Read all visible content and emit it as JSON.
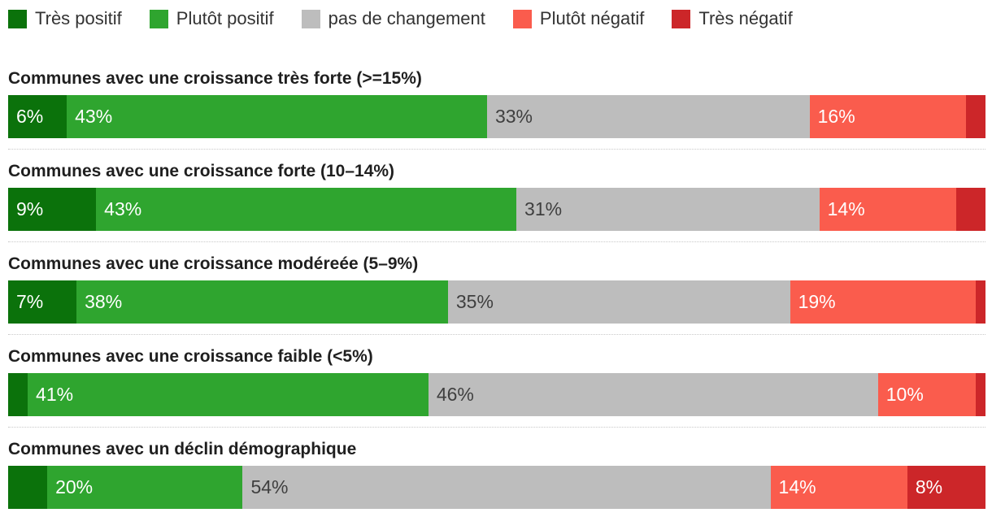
{
  "legend": {
    "items": [
      {
        "name": "tres-positif",
        "label": "Très positif",
        "color": "#0b720b",
        "label_text_color": "#ffffff"
      },
      {
        "name": "plutot-positif",
        "label": "Plutôt positif",
        "color": "#2fa52f",
        "label_text_color": "#ffffff"
      },
      {
        "name": "pas-de-changement",
        "label": "pas de changement",
        "color": "#bdbdbd",
        "label_text_color": "#3f3f3f"
      },
      {
        "name": "plutot-negatif",
        "label": "Plutôt négatif",
        "color": "#fa5c4d",
        "label_text_color": "#ffffff"
      },
      {
        "name": "tres-negatif",
        "label": "Très négatif",
        "color": "#cc2629",
        "label_text_color": "#ffffff"
      }
    ]
  },
  "chart_data": {
    "type": "bar",
    "subtype": "horizontal-stacked-100-percent",
    "unit": "%",
    "legend_position": "top",
    "series_names": [
      "Très positif",
      "Plutôt positif",
      "pas de changement",
      "Plutôt négatif",
      "Très négatif"
    ],
    "series_colors": [
      "#0b720b",
      "#2fa52f",
      "#bdbdbd",
      "#fa5c4d",
      "#cc2629"
    ],
    "groups": [
      {
        "title": "Communes avec une croissance très forte (>=15%)",
        "values": [
          6,
          43,
          33,
          16,
          2
        ],
        "labels": [
          "6%",
          "43%",
          "33%",
          "16%",
          ""
        ]
      },
      {
        "title": "Communes avec une croissance forte (10–14%)",
        "values": [
          9,
          43,
          31,
          14,
          3
        ],
        "labels": [
          "9%",
          "43%",
          "31%",
          "14%",
          ""
        ]
      },
      {
        "title": "Communes avec une croissance modéreée (5–9%)",
        "values": [
          7,
          38,
          35,
          19,
          1
        ],
        "labels": [
          "7%",
          "38%",
          "35%",
          "19%",
          ""
        ]
      },
      {
        "title": "Communes avec une croissance faible (<5%)",
        "values": [
          2,
          41,
          46,
          10,
          1
        ],
        "labels": [
          "",
          "41%",
          "46%",
          "10%",
          ""
        ]
      },
      {
        "title": "Communes avec un déclin démographique",
        "values": [
          4,
          20,
          54,
          14,
          8
        ],
        "labels": [
          "",
          "20%",
          "54%",
          "14%",
          "8%"
        ]
      }
    ]
  }
}
